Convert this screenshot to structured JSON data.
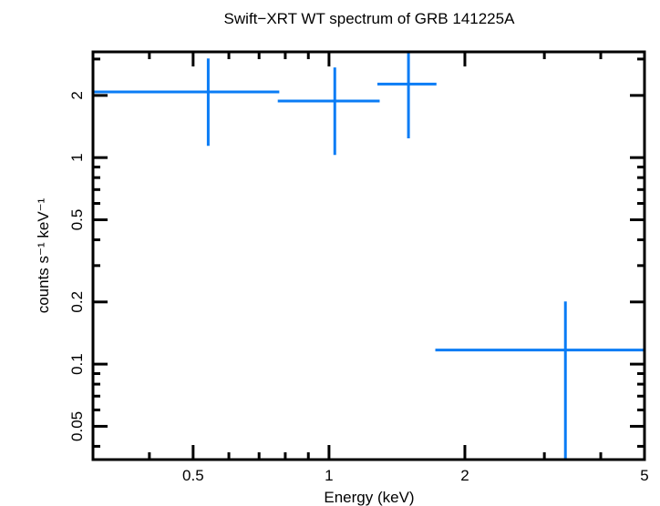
{
  "chart_data": {
    "type": "scatter",
    "title": "Swift−XRT WT spectrum of GRB 141225A",
    "xlabel": "Energy (keV)",
    "ylabel": "counts s⁻¹ keV⁻¹",
    "xscale": "log",
    "yscale": "log",
    "xlim": [
      0.3,
      5
    ],
    "ylim": [
      0.0345,
      3.25
    ],
    "xticks": [
      0.5,
      1,
      2,
      5
    ],
    "xtick_labels": [
      "0.5",
      "1",
      "2",
      "5"
    ],
    "yticks": [
      0.05,
      0.1,
      0.2,
      0.5,
      1,
      2
    ],
    "ytick_labels": [
      "0.05",
      "0.1",
      "0.2",
      "0.5",
      "1",
      "2"
    ],
    "grid": false,
    "series": [
      {
        "name": "WT spectrum",
        "color": "#0a7cf5",
        "points": [
          {
            "x": 0.54,
            "xlo": 0.3,
            "xhi": 0.776,
            "y": 2.08,
            "ylo": 1.14,
            "yhi": 3.02
          },
          {
            "x": 1.03,
            "xlo": 0.77,
            "xhi": 1.295,
            "y": 1.88,
            "ylo": 1.03,
            "yhi": 2.73
          },
          {
            "x": 1.5,
            "xlo": 1.28,
            "xhi": 1.73,
            "y": 2.27,
            "ylo": 1.24,
            "yhi": 3.25
          },
          {
            "x": 3.34,
            "xlo": 1.72,
            "xhi": 5.0,
            "y": 0.117,
            "ylo": 0.0345,
            "yhi": 0.201
          }
        ]
      }
    ]
  }
}
